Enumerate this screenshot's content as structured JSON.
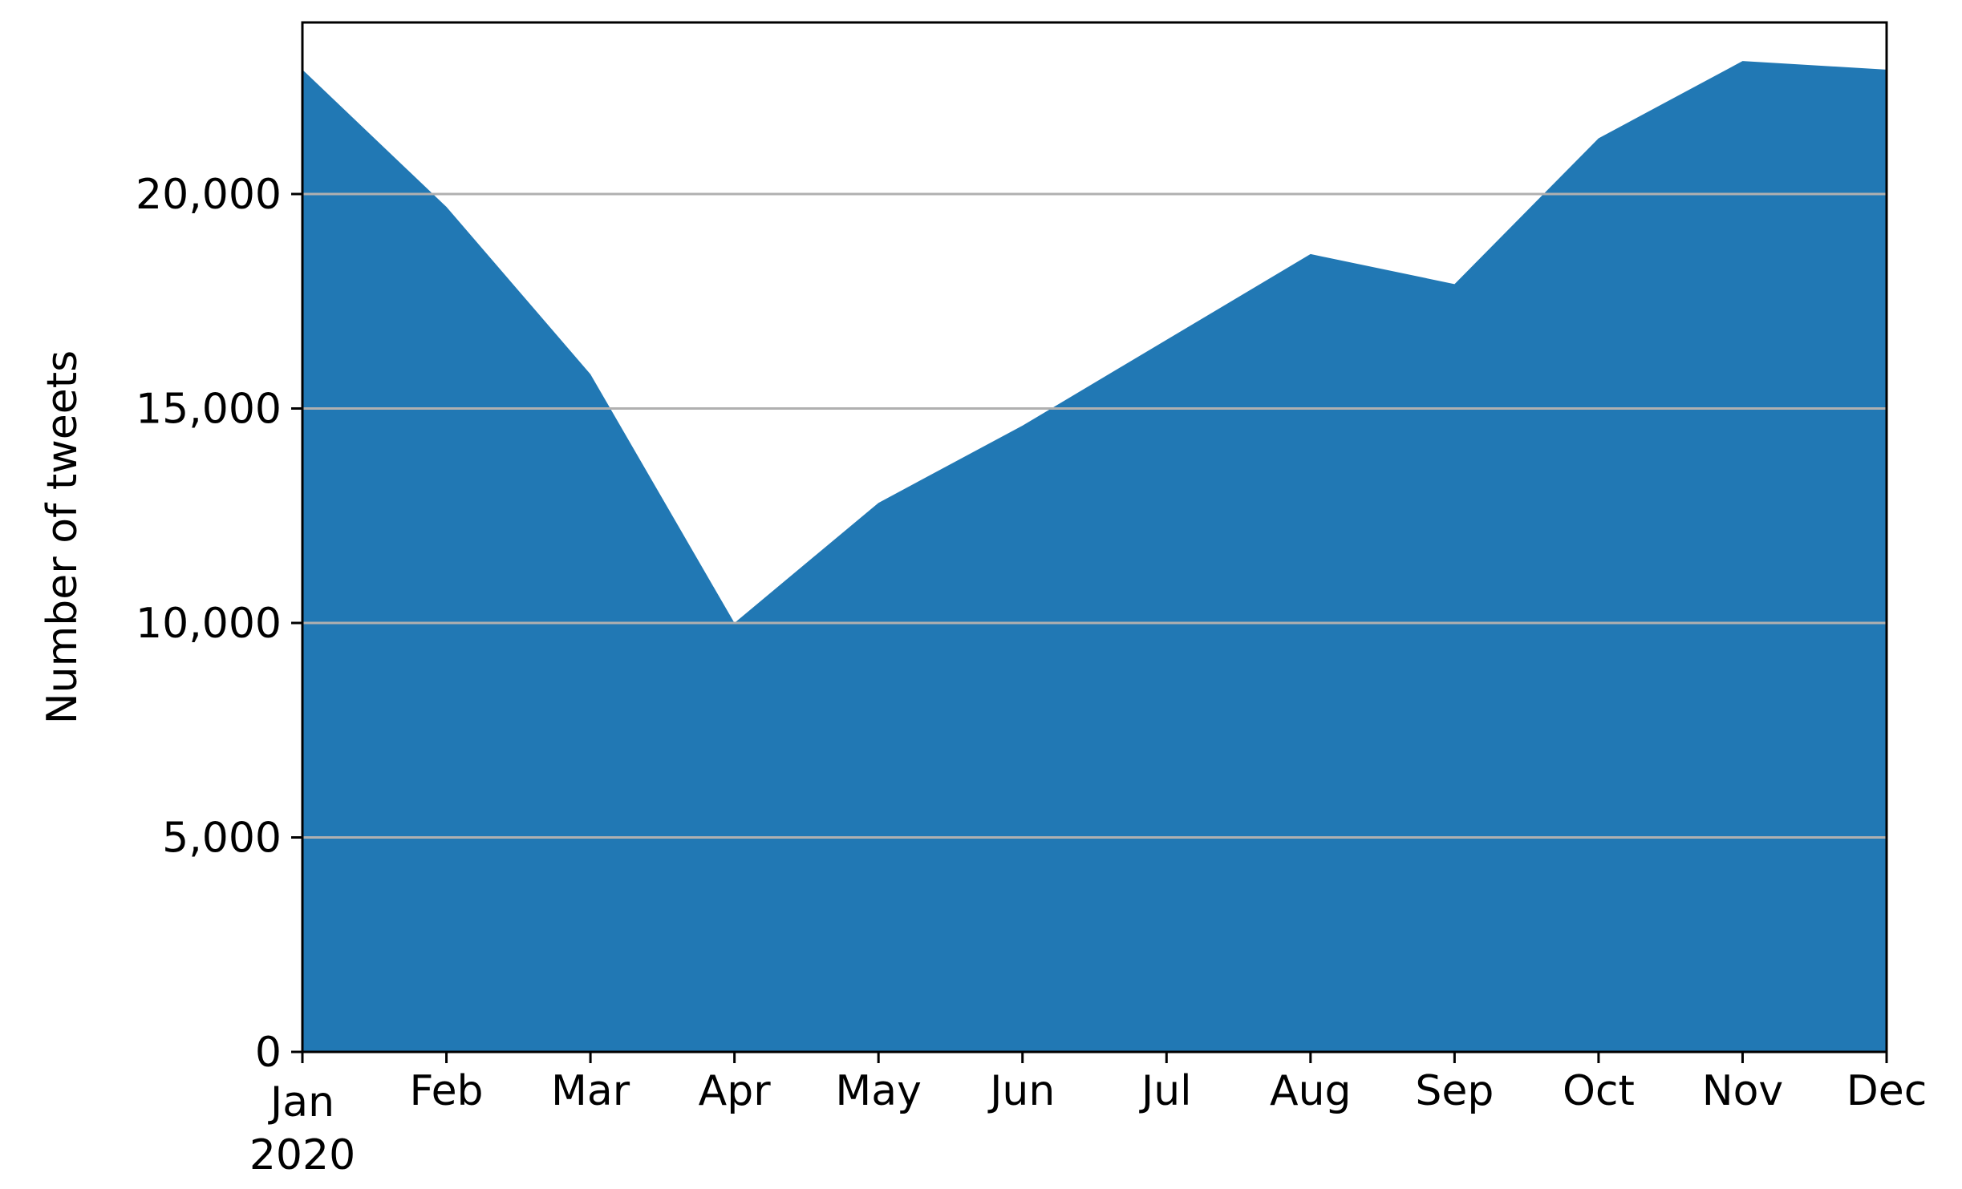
{
  "chart_data": {
    "type": "area",
    "title": "",
    "xlabel": "",
    "ylabel": "Number of tweets",
    "x": [
      "2020-01",
      "2020-02",
      "2020-03",
      "2020-04",
      "2020-05",
      "2020-06",
      "2020-07",
      "2020-08",
      "2020-09",
      "2020-10",
      "2020-11",
      "2020-12"
    ],
    "x_tick_labels": [
      "Jan",
      "Feb",
      "Mar",
      "Apr",
      "May",
      "Jun",
      "Jul",
      "Aug",
      "Sep",
      "Oct",
      "Nov",
      "Dec"
    ],
    "x_tick_sublabel": "2020",
    "series": [
      {
        "values": [
          22900,
          19700,
          15800,
          10000,
          12800,
          14600,
          16600,
          18600,
          17900,
          21300,
          23100,
          22900
        ]
      }
    ],
    "ylim": [
      0,
      24000
    ],
    "y_ticks": [
      0,
      5000,
      10000,
      15000,
      20000
    ],
    "y_tick_labels": [
      "0",
      "5,000",
      "10,000",
      "15,000",
      "20,000"
    ],
    "grid": "horizontal",
    "fill_color": "#2178b4",
    "grid_color": "#b0b0b0"
  }
}
